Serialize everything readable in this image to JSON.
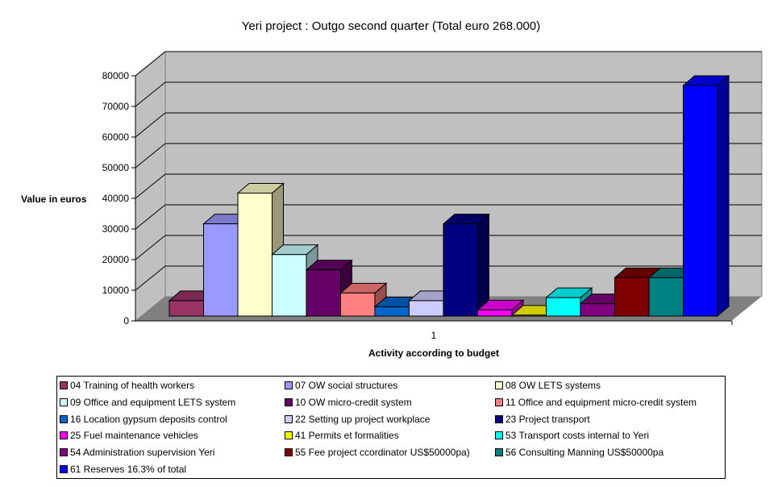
{
  "chart_data": {
    "type": "bar",
    "style": "3d-clustered-column",
    "title": "Yeri project : Outgo second quarter (Total euro 268.000)",
    "xlabel": "Activity according to budget",
    "ylabel": "Value in euros",
    "categories": [
      "1"
    ],
    "ylim": [
      0,
      80000
    ],
    "yticks": [
      "0",
      "10000",
      "20000",
      "30000",
      "40000",
      "50000",
      "60000",
      "70000",
      "80000"
    ],
    "grid": true,
    "legend_position": "bottom",
    "series": [
      {
        "name": "04 Training of health workers",
        "values": [
          5000
        ],
        "color": "#993366"
      },
      {
        "name": "07 OW social structures",
        "values": [
          30000
        ],
        "color": "#9999FF"
      },
      {
        "name": "08 OW LETS systems",
        "values": [
          40000
        ],
        "color": "#FFFFCC"
      },
      {
        "name": "09 Office and equipment LETS system",
        "values": [
          20000
        ],
        "color": "#CCFFFF"
      },
      {
        "name": "10 OW micro-credit system",
        "values": [
          15000
        ],
        "color": "#660066"
      },
      {
        "name": "11 Office and equipment micro-credit system",
        "values": [
          7500
        ],
        "color": "#FF8080"
      },
      {
        "name": "16 Location gypsum deposits control",
        "values": [
          3000
        ],
        "color": "#0066CC"
      },
      {
        "name": "22 Setting up project workplace",
        "values": [
          5000
        ],
        "color": "#CCCCFF"
      },
      {
        "name": "23 Project transport",
        "values": [
          30000
        ],
        "color": "#000080"
      },
      {
        "name": "25 Fuel maintenance vehicles",
        "values": [
          2000
        ],
        "color": "#FF00FF"
      },
      {
        "name": "41 Permits et formalities",
        "values": [
          300
        ],
        "color": "#FFFF00"
      },
      {
        "name": "53 Transport costs internal to Yeri",
        "values": [
          6000
        ],
        "color": "#00FFFF"
      },
      {
        "name": "54 Administration supervision Yeri",
        "values": [
          4000
        ],
        "color": "#800080"
      },
      {
        "name": "55 Fee project ccordinator US$50000pa)",
        "values": [
          12500
        ],
        "color": "#800000"
      },
      {
        "name": "56 Consulting Manning US$50000pa",
        "values": [
          12500
        ],
        "color": "#008080"
      },
      {
        "name": "61 Reserves 16.3% of total",
        "values": [
          75000
        ],
        "color": "#0000FF"
      }
    ]
  },
  "colors": {
    "wall": "#C0C0C0",
    "floor": "#808080",
    "gridline": "#000000"
  }
}
